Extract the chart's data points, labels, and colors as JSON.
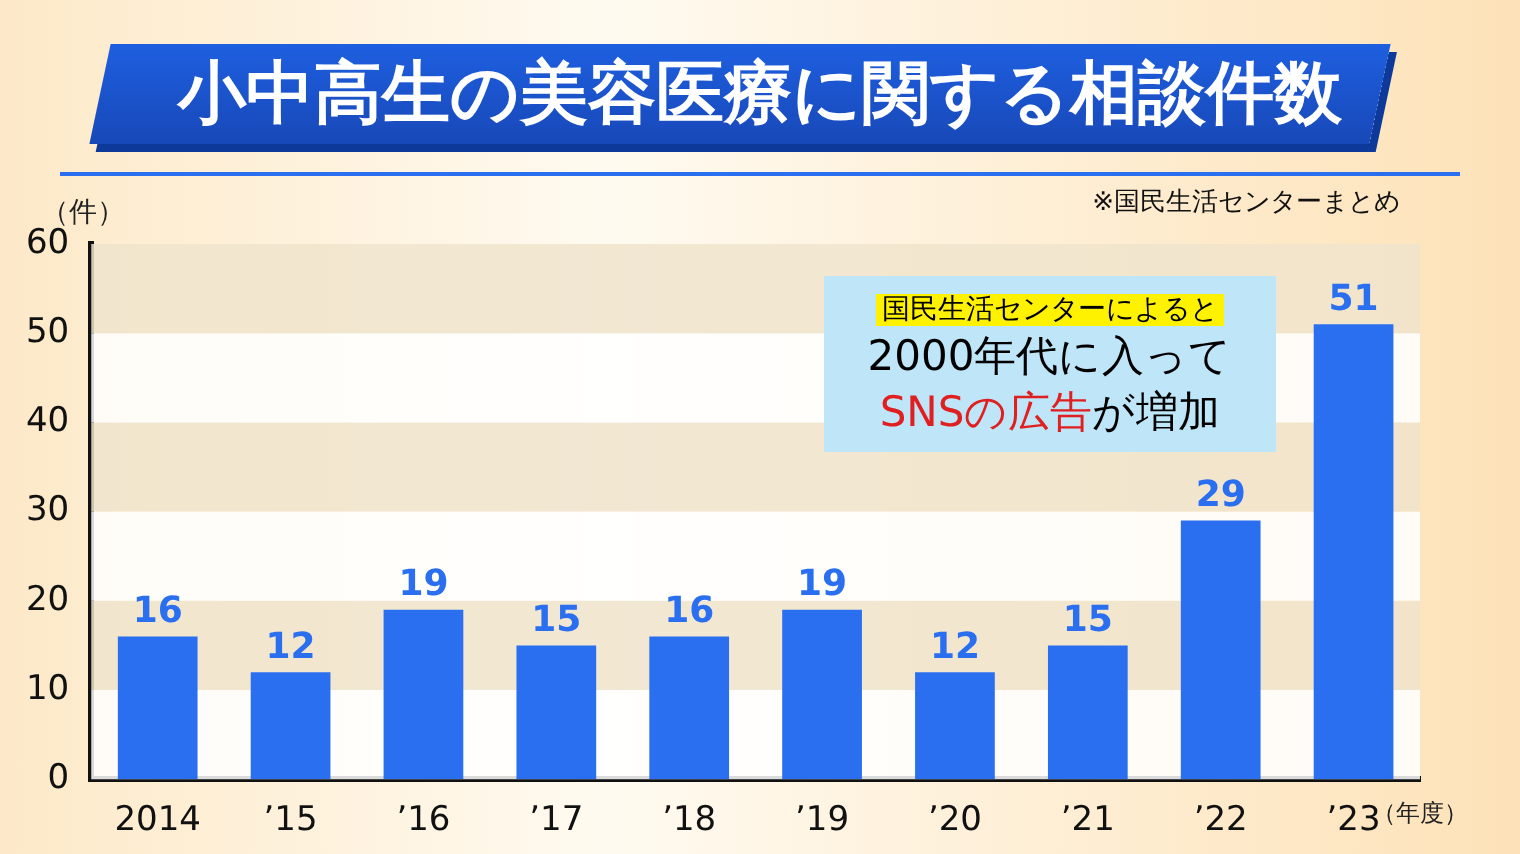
{
  "chart_data": {
    "type": "bar",
    "title": "小中高生の美容医療に関する相談件数",
    "ylabel": "（件）",
    "xlabel": "（年度）",
    "annotations": [
      "※国民生活センターまとめ",
      "国民生活センターによると",
      "2000年代に入って",
      "SNSの広告",
      "が増加"
    ],
    "categories": [
      "2014",
      "’15",
      "’16",
      "’17",
      "’18",
      "’19",
      "’20",
      "’21",
      "’22",
      "’23"
    ],
    "values": [
      16,
      12,
      19,
      15,
      16,
      19,
      12,
      15,
      29,
      51
    ],
    "color": "#2a6ff0",
    "ylim": [
      0,
      60
    ],
    "yticks": [
      0,
      10,
      20,
      30,
      40,
      50,
      60
    ],
    "data_labels": true
  }
}
